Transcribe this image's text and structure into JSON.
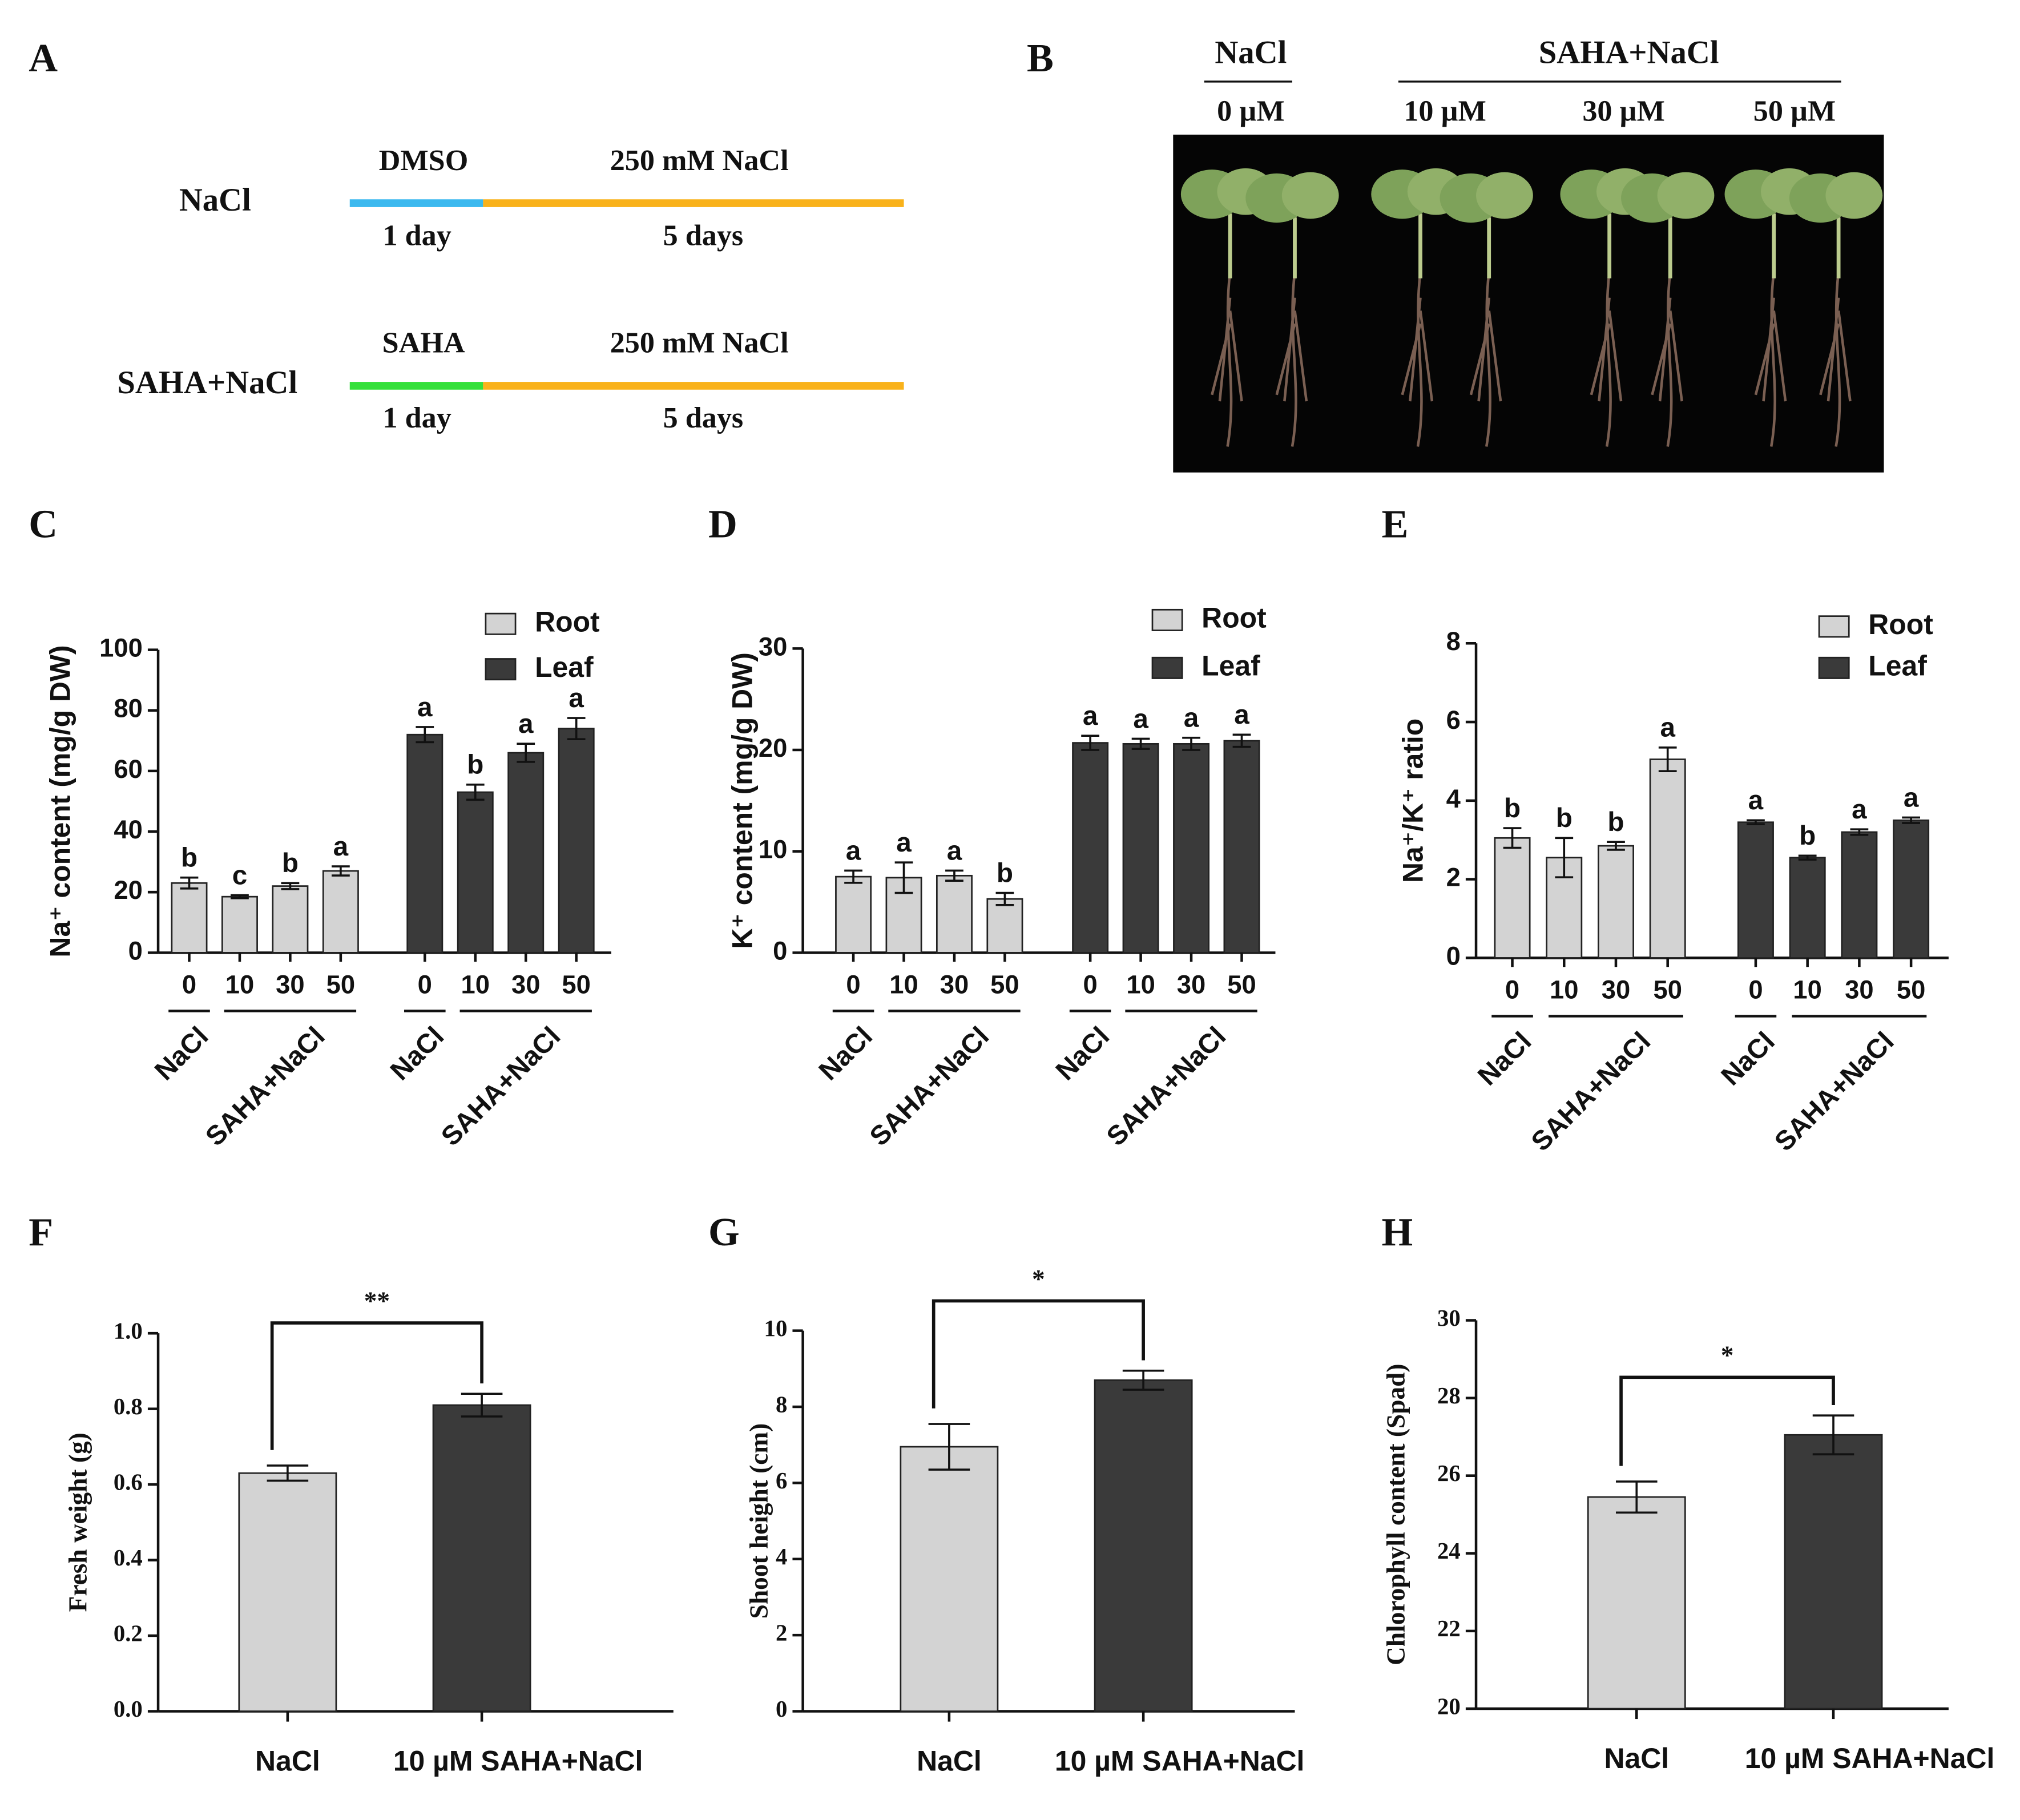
{
  "panel_labels": [
    "A",
    "B",
    "C",
    "D",
    "E",
    "F",
    "G",
    "H"
  ],
  "timeline": {
    "rows": [
      {
        "label": "NaCl",
        "pre": "DMSO",
        "pre_color": "#3cb9ef",
        "main": "250 mM NaCl",
        "main_color": "#f9b21b",
        "pre_duration": "1 day",
        "main_duration": "5 days"
      },
      {
        "label": "SAHA+NaCl",
        "pre": "SAHA",
        "pre_color": "#35e03a",
        "main": "250 mM NaCl",
        "main_color": "#f9b21b",
        "pre_duration": "1 day",
        "main_duration": "5 days"
      }
    ]
  },
  "photo": {
    "groups": [
      "NaCl",
      "SAHA+NaCl"
    ],
    "doses": [
      "0 µM",
      "10 µM",
      "30 µM",
      "50 µM"
    ]
  },
  "chart_data": [
    {
      "type": "bar",
      "y_label": "Na⁺ content (mg/g DW)",
      "categories": [
        "0",
        "10",
        "30",
        "50"
      ],
      "group_labels": [
        "NaCl",
        "SAHA+NaCl"
      ],
      "ylim": [
        0,
        100
      ],
      "yticks": [
        0,
        20,
        40,
        60,
        80,
        100
      ],
      "legend": "top-right",
      "series": [
        {
          "name": "Root",
          "color": "#d3d3d3",
          "values": [
            23,
            18.5,
            22,
            27
          ],
          "errors": [
            1.8,
            0.5,
            1,
            1.5
          ],
          "letters": [
            "b",
            "c",
            "b",
            "a"
          ]
        },
        {
          "name": "Leaf",
          "color": "#3a3a3a",
          "values": [
            72,
            53,
            66,
            74
          ],
          "errors": [
            2.5,
            2.5,
            3,
            3.5
          ],
          "letters": [
            "a",
            "b",
            "a",
            "a"
          ]
        }
      ]
    },
    {
      "type": "bar",
      "y_label": "K⁺ content (mg/g DW)",
      "categories": [
        "0",
        "10",
        "30",
        "50"
      ],
      "group_labels": [
        "NaCl",
        "SAHA+NaCl"
      ],
      "ylim": [
        0,
        30
      ],
      "yticks": [
        0,
        10,
        20,
        30
      ],
      "legend": "top-right",
      "series": [
        {
          "name": "Root",
          "color": "#d3d3d3",
          "values": [
            7.5,
            7.4,
            7.6,
            5.3
          ],
          "errors": [
            0.6,
            1.5,
            0.5,
            0.6
          ],
          "letters": [
            "a",
            "a",
            "a",
            "b"
          ]
        },
        {
          "name": "Leaf",
          "color": "#3a3a3a",
          "values": [
            20.7,
            20.6,
            20.6,
            20.9
          ],
          "errors": [
            0.7,
            0.5,
            0.6,
            0.6
          ],
          "letters": [
            "a",
            "a",
            "a",
            "a"
          ]
        }
      ]
    },
    {
      "type": "bar",
      "y_label": "Na⁺/K⁺ ratio",
      "categories": [
        "0",
        "10",
        "30",
        "50"
      ],
      "group_labels": [
        "NaCl",
        "SAHA+NaCl"
      ],
      "ylim": [
        0,
        8
      ],
      "yticks": [
        0,
        2,
        4,
        6,
        8
      ],
      "legend": "top-right",
      "series": [
        {
          "name": "Root",
          "color": "#d3d3d3",
          "values": [
            3.05,
            2.55,
            2.85,
            5.05
          ],
          "errors": [
            0.25,
            0.5,
            0.1,
            0.3
          ],
          "letters": [
            "b",
            "b",
            "b",
            "a"
          ]
        },
        {
          "name": "Leaf",
          "color": "#3a3a3a",
          "values": [
            3.45,
            2.55,
            3.2,
            3.5
          ],
          "errors": [
            0.05,
            0.05,
            0.07,
            0.07
          ],
          "letters": [
            "a",
            "b",
            "a",
            "a"
          ]
        }
      ]
    },
    {
      "type": "simplebar",
      "y_label": "Fresh weight  (g)",
      "categories": [
        "NaCl",
        "10 µM SAHA+NaCl"
      ],
      "values": [
        0.63,
        0.81
      ],
      "errors": [
        0.02,
        0.03
      ],
      "colors": [
        "#d3d3d3",
        "#3a3a3a"
      ],
      "significance": "**",
      "ylim": [
        0,
        1.0
      ],
      "yticks": [
        {
          "value": 0,
          "label": "0.0"
        },
        0.2,
        0.4,
        0.6,
        0.8,
        {
          "value": 1,
          "label": "1.0"
        }
      ]
    },
    {
      "type": "simplebar",
      "y_label": "Shoot  height (cm)",
      "categories": [
        "NaCl",
        "10 µM SAHA+NaCl"
      ],
      "values": [
        6.95,
        8.7
      ],
      "errors": [
        0.6,
        0.25
      ],
      "colors": [
        "#d3d3d3",
        "#3a3a3a"
      ],
      "significance": "*",
      "ylim": [
        0,
        10
      ],
      "yticks": [
        0,
        2,
        4,
        6,
        8,
        10
      ]
    },
    {
      "type": "simplebar",
      "y_label": "Chlorophyll content (Spad)",
      "categories": [
        "NaCl",
        "10 µM SAHA+NaCl"
      ],
      "values": [
        25.45,
        27.05
      ],
      "errors": [
        0.4,
        0.5
      ],
      "colors": [
        "#d3d3d3",
        "#3a3a3a"
      ],
      "significance": "*",
      "ylim": [
        20,
        30
      ],
      "yticks": [
        20,
        22,
        24,
        26,
        28,
        30
      ]
    }
  ]
}
